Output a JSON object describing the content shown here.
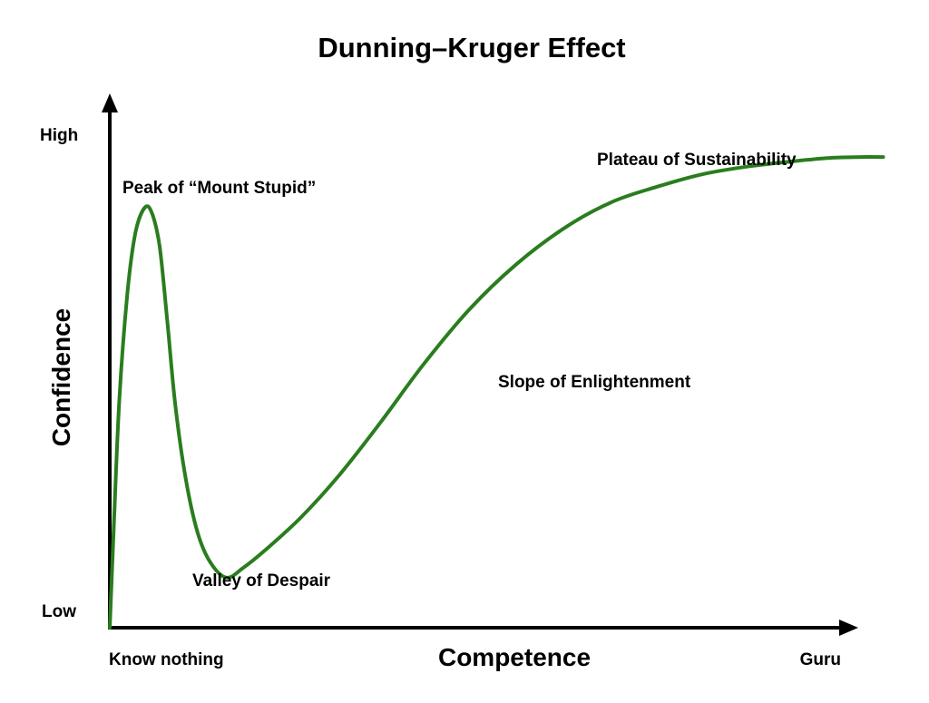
{
  "chart_data": {
    "type": "line",
    "title": "Dunning–Kruger Effect",
    "xlabel": "Competence",
    "ylabel": "Confidence",
    "x_tick_labels": [
      "Know nothing",
      "Guru"
    ],
    "y_tick_labels": [
      "Low",
      "High"
    ],
    "xlim": [
      0,
      100
    ],
    "ylim": [
      0,
      100
    ],
    "grid": false,
    "legend": "none",
    "line_color": "#2a7d1e",
    "series": [
      {
        "x": [
          0,
          0.5,
          1.2,
          2.2,
          3.2,
          4.4,
          5.3,
          6.2,
          7.1,
          8.1,
          9.4,
          10.9,
          12.5,
          14.5,
          16.6,
          19.3,
          23.7,
          28.5,
          33.6,
          38.9,
          44.6,
          50.4,
          56.6,
          62.3,
          67.8,
          73.4,
          78.7,
          84.0,
          89.1,
          93.2,
          96.0
        ],
        "y": [
          0,
          20,
          46,
          67,
          79,
          84,
          82.5,
          76,
          62,
          45,
          30,
          19,
          13,
          10,
          12,
          15.5,
          22,
          30.5,
          41,
          52.5,
          63.5,
          72.5,
          80,
          85,
          88,
          90.5,
          92,
          93,
          93.8,
          94,
          94
        ]
      }
    ],
    "annotations": [
      {
        "text": "Peak of “Mount Stupid”",
        "x": 4.4,
        "y": 84
      },
      {
        "text": "Valley of Despair",
        "x": 14.5,
        "y": 10
      },
      {
        "text": "Slope of Enlightenment",
        "x": 50.4,
        "y": 72.5
      },
      {
        "text": "Plateau of Sustainability",
        "x": 96.0,
        "y": 94
      }
    ]
  }
}
